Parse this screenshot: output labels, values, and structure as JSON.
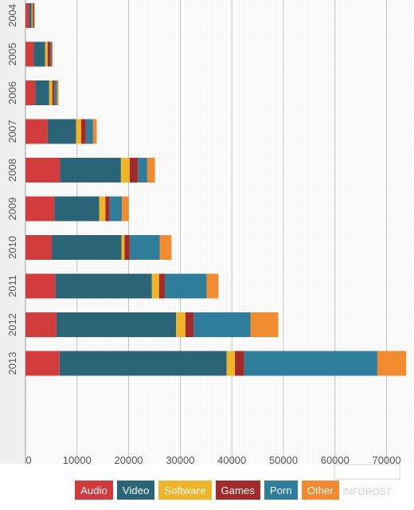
{
  "chart_data": {
    "type": "bar",
    "orientation": "horizontal",
    "stacked": true,
    "categories": [
      "2004",
      "2005",
      "2006",
      "2007",
      "2008",
      "2009",
      "2010",
      "2011",
      "2012",
      "2013"
    ],
    "series": [
      {
        "name": "Audio",
        "color": "#d13b3b",
        "values": [
          700,
          1600,
          1900,
          4300,
          6700,
          5600,
          5100,
          5800,
          6000,
          6600
        ]
      },
      {
        "name": "Video",
        "color": "#2a6577",
        "values": [
          500,
          2200,
          2700,
          5500,
          11800,
          8700,
          13500,
          18700,
          23200,
          32400
        ]
      },
      {
        "name": "Software",
        "color": "#f0b429",
        "values": [
          200,
          500,
          600,
          1000,
          1700,
          1200,
          600,
          1400,
          1800,
          1600
        ]
      },
      {
        "name": "Games",
        "color": "#a32a2a",
        "values": [
          200,
          500,
          400,
          900,
          1600,
          800,
          1000,
          1100,
          1600,
          1800
        ]
      },
      {
        "name": "Porn",
        "color": "#2e7e9b",
        "values": [
          100,
          300,
          500,
          1400,
          1800,
          2400,
          5800,
          8100,
          11000,
          25800
        ]
      },
      {
        "name": "Other",
        "color": "#f28b30",
        "values": [
          100,
          200,
          300,
          700,
          1500,
          1300,
          2300,
          2300,
          5400,
          5600
        ]
      }
    ],
    "xlim": [
      0,
      75000
    ],
    "xticks": [
      0,
      10000,
      20000,
      30000,
      40000,
      50000,
      60000,
      70000
    ],
    "grid": true,
    "legend": "bottom-center"
  },
  "watermark_text": "INFOPOST"
}
